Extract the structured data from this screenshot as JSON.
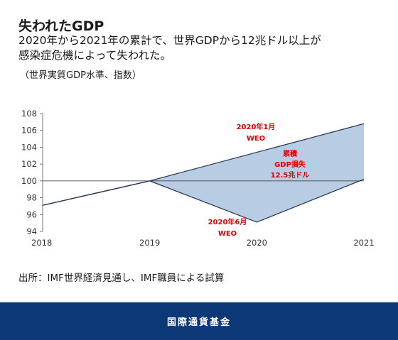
{
  "header": {
    "title": "失われたGDP",
    "subtitle_line1": "2020年から2021年の累計で、世界GDPから12兆ドル以上が",
    "subtitle_line2": "感染症危機によって失われた。",
    "note": "（世界実質GDP水準、指数）"
  },
  "chart_data": {
    "type": "area",
    "x": [
      2018,
      2019,
      2020,
      2021
    ],
    "xlim": [
      2018,
      2021
    ],
    "ylim": [
      94,
      108
    ],
    "yticks": [
      94,
      96,
      98,
      100,
      102,
      104,
      106,
      108
    ],
    "xtick_labels": [
      "2018",
      "2019",
      "2020",
      "2021"
    ],
    "series": [
      {
        "name": "2020年1月 WEO",
        "x": [
          2018,
          2019,
          2021
        ],
        "values": [
          97.1,
          100.0,
          106.8
        ]
      },
      {
        "name": "2020年6月 WEO",
        "x": [
          2018,
          2019,
          2020,
          2021
        ],
        "values": [
          97.1,
          100.0,
          95.1,
          100.2
        ]
      }
    ],
    "reference_line": 100,
    "fill_color": "#b8cce4",
    "line_color": "#2b3a55",
    "label_color": "#e00000",
    "annotations": {
      "jan_line1": "2020年1月",
      "jan_line2": "WEO",
      "jun_line1": "2020年6月",
      "jun_line2": "WEO",
      "loss_line1": "累積",
      "loss_line2": "GDP損失",
      "loss_line3": "12.5兆ドル"
    }
  },
  "source": "出所：IMF世界経済見通し、IMF職員による試算",
  "footer": {
    "label": "国際通貨基金"
  }
}
